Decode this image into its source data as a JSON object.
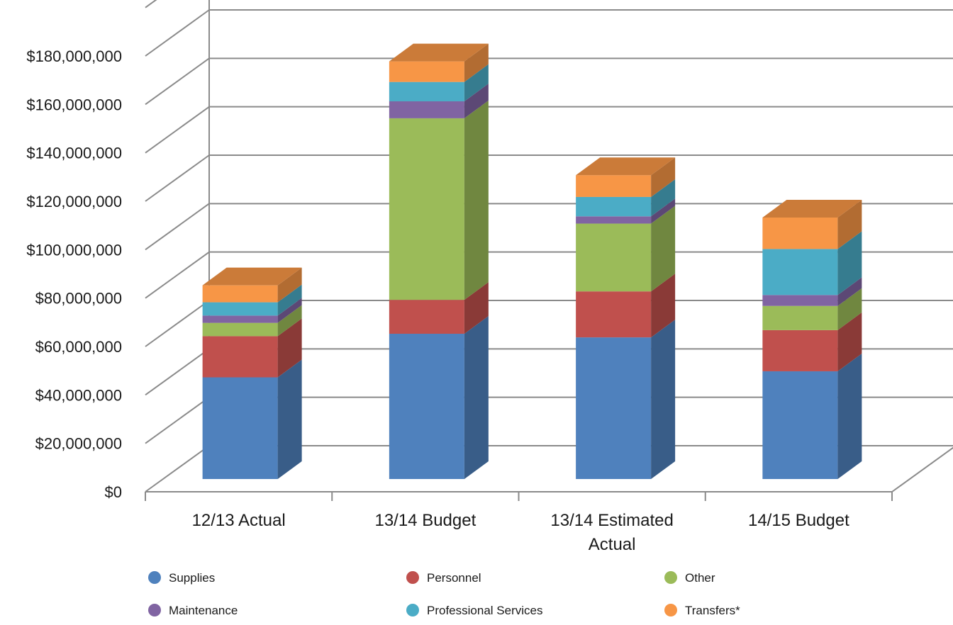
{
  "chart_data": {
    "type": "bar",
    "stacked": true,
    "three_d": true,
    "categories": [
      [
        "12/13 Actual"
      ],
      [
        "13/14 Budget"
      ],
      [
        "13/14 Estimated",
        "Actual"
      ],
      [
        "14/15 Budget"
      ]
    ],
    "series": [
      {
        "name": "Supplies",
        "color": "#4F81BD",
        "values": [
          42000000,
          60000000,
          58500000,
          44500000
        ]
      },
      {
        "name": "Personnel",
        "color": "#C0504D",
        "values": [
          17000000,
          14000000,
          19000000,
          17000000
        ]
      },
      {
        "name": "Other",
        "color": "#9BBB59",
        "values": [
          5500000,
          75000000,
          28000000,
          10000000
        ]
      },
      {
        "name": "Maintenance",
        "color": "#8064A2",
        "values": [
          3000000,
          7000000,
          3000000,
          4500000
        ]
      },
      {
        "name": "Professional Services",
        "color": "#4BACC6",
        "values": [
          5500000,
          8000000,
          8000000,
          19000000
        ]
      },
      {
        "name": "Transfers*",
        "color": "#F79646",
        "values": [
          7000000,
          8500000,
          9000000,
          13000000
        ]
      }
    ],
    "y_ticks": [
      "$0",
      "$20,000,000",
      "$40,000,000",
      "$60,000,000",
      "$80,000,000",
      "$100,000,000",
      "$120,000,000",
      "$140,000,000",
      "$160,000,000",
      "$180,000,000"
    ],
    "ylim": [
      0,
      180000000
    ],
    "grid": true,
    "legend_position": "bottom",
    "title": "",
    "xlabel": "",
    "ylabel": ""
  }
}
